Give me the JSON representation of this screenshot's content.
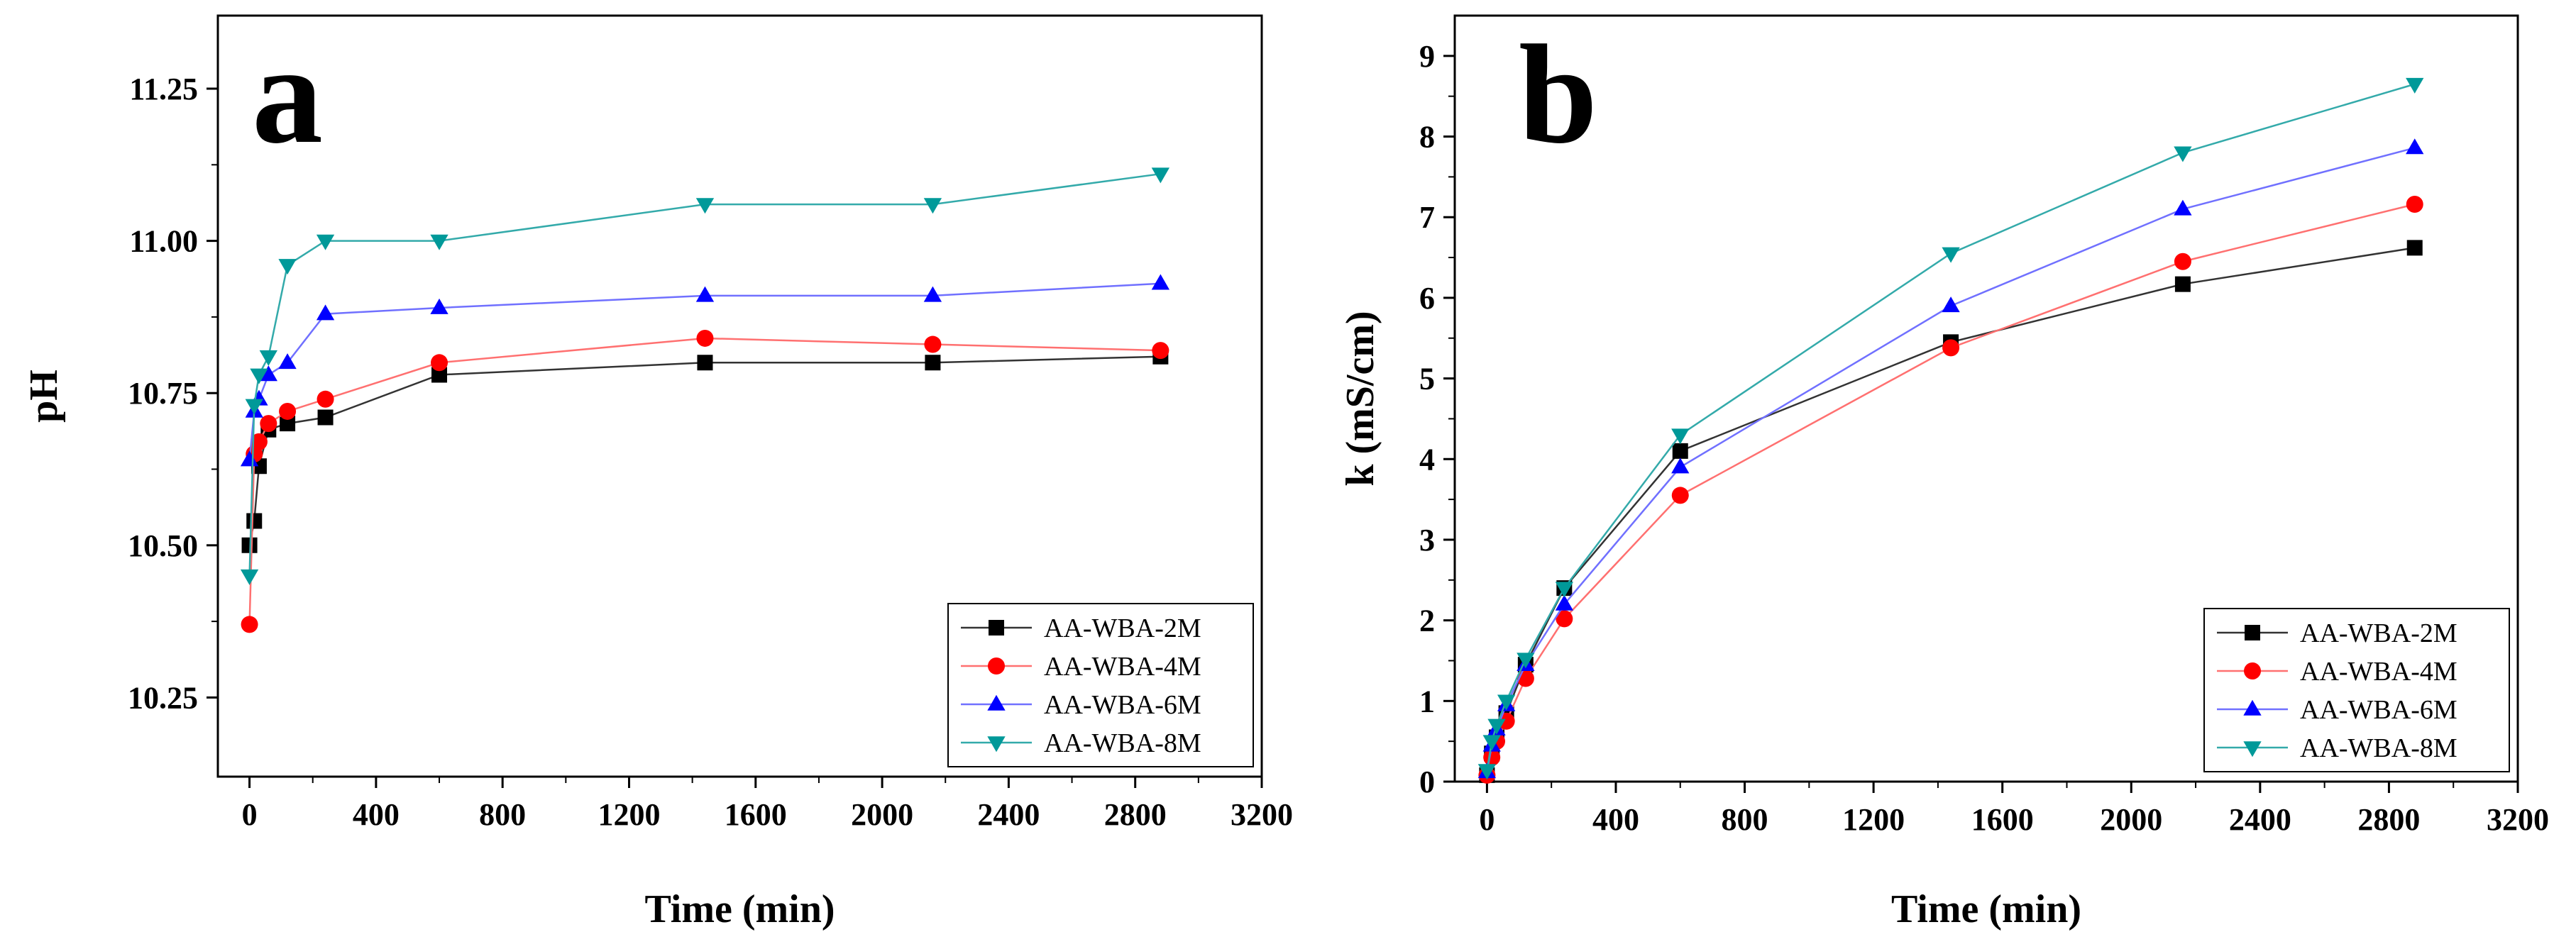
{
  "chart_data": [
    {
      "type": "line",
      "panel_label": "a",
      "xlabel": "Time (min)",
      "ylabel": "pH",
      "xlim": [
        -100,
        3200
      ],
      "ylim": [
        10.12,
        11.37
      ],
      "xticks": [
        0,
        400,
        800,
        1200,
        1600,
        2000,
        2400,
        2800,
        3200
      ],
      "yticks": [
        10.25,
        10.5,
        10.75,
        11.0,
        11.25
      ],
      "ytick_labels": [
        "10.25",
        "10.50",
        "10.75",
        "11.00",
        "11.25"
      ],
      "legend_position": "bottom-right",
      "series": [
        {
          "name": "AA-WBA-2M",
          "color": "#000000",
          "marker": "square",
          "line": "#333333",
          "x": [
            0,
            15,
            30,
            60,
            120,
            240,
            600,
            1440,
            2160,
            2880
          ],
          "y": [
            10.5,
            10.54,
            10.63,
            10.69,
            10.7,
            10.71,
            10.78,
            10.8,
            10.8,
            10.81
          ]
        },
        {
          "name": "AA-WBA-4M",
          "color": "#ff0000",
          "marker": "circle",
          "line": "#ff7070",
          "x": [
            0,
            15,
            30,
            60,
            120,
            240,
            600,
            1440,
            2160,
            2880
          ],
          "y": [
            10.37,
            10.65,
            10.67,
            10.7,
            10.72,
            10.74,
            10.8,
            10.84,
            10.83,
            10.82
          ]
        },
        {
          "name": "AA-WBA-6M",
          "color": "#0000ff",
          "marker": "triangle-up",
          "line": "#7070ff",
          "x": [
            0,
            15,
            30,
            60,
            120,
            240,
            600,
            1440,
            2160,
            2880
          ],
          "y": [
            10.64,
            10.72,
            10.74,
            10.78,
            10.8,
            10.88,
            10.89,
            10.91,
            10.91,
            10.93
          ]
        },
        {
          "name": "AA-WBA-8M",
          "color": "#009999",
          "marker": "triangle-down",
          "line": "#33aaaa",
          "x": [
            0,
            15,
            30,
            60,
            120,
            240,
            600,
            1440,
            2160,
            2880
          ],
          "y": [
            10.45,
            10.73,
            10.78,
            10.81,
            10.96,
            11.0,
            11.0,
            11.06,
            11.06,
            11.11
          ]
        }
      ]
    },
    {
      "type": "line",
      "panel_label": "b",
      "xlabel": "Time (min)",
      "ylabel": "k (mS/cm)",
      "xlim": [
        -100,
        3200
      ],
      "ylim": [
        0,
        9.5
      ],
      "xticks": [
        0,
        400,
        800,
        1200,
        1600,
        2000,
        2400,
        2800,
        3200
      ],
      "yticks": [
        0,
        1,
        2,
        3,
        4,
        5,
        6,
        7,
        8,
        9
      ],
      "ytick_labels": [
        "0",
        "1",
        "2",
        "3",
        "4",
        "5",
        "6",
        "7",
        "8",
        "9"
      ],
      "legend_position": "bottom-right",
      "series": [
        {
          "name": "AA-WBA-2M",
          "color": "#000000",
          "marker": "square",
          "line": "#333333",
          "x": [
            0,
            15,
            30,
            60,
            120,
            240,
            600,
            1440,
            2160,
            2880
          ],
          "y": [
            0.08,
            0.35,
            0.55,
            0.85,
            1.45,
            2.4,
            4.1,
            5.45,
            6.17,
            6.62
          ]
        },
        {
          "name": "AA-WBA-4M",
          "color": "#ff0000",
          "marker": "circle",
          "line": "#ff7070",
          "x": [
            0,
            15,
            30,
            60,
            120,
            240,
            600,
            1440,
            2160,
            2880
          ],
          "y": [
            0.08,
            0.3,
            0.5,
            0.75,
            1.28,
            2.02,
            3.55,
            5.38,
            6.45,
            7.16
          ]
        },
        {
          "name": "AA-WBA-6M",
          "color": "#0000ff",
          "marker": "triangle-up",
          "line": "#7070ff",
          "x": [
            0,
            15,
            30,
            60,
            120,
            240,
            600,
            1440,
            2160,
            2880
          ],
          "y": [
            0.12,
            0.45,
            0.65,
            0.95,
            1.45,
            2.2,
            3.9,
            5.9,
            7.1,
            7.86
          ]
        },
        {
          "name": "AA-WBA-8M",
          "color": "#009999",
          "marker": "triangle-down",
          "line": "#33aaaa",
          "x": [
            0,
            15,
            30,
            60,
            120,
            240,
            600,
            1440,
            2160,
            2880
          ],
          "y": [
            0.14,
            0.5,
            0.7,
            1.0,
            1.52,
            2.4,
            4.3,
            6.55,
            7.8,
            8.65
          ]
        }
      ]
    }
  ]
}
